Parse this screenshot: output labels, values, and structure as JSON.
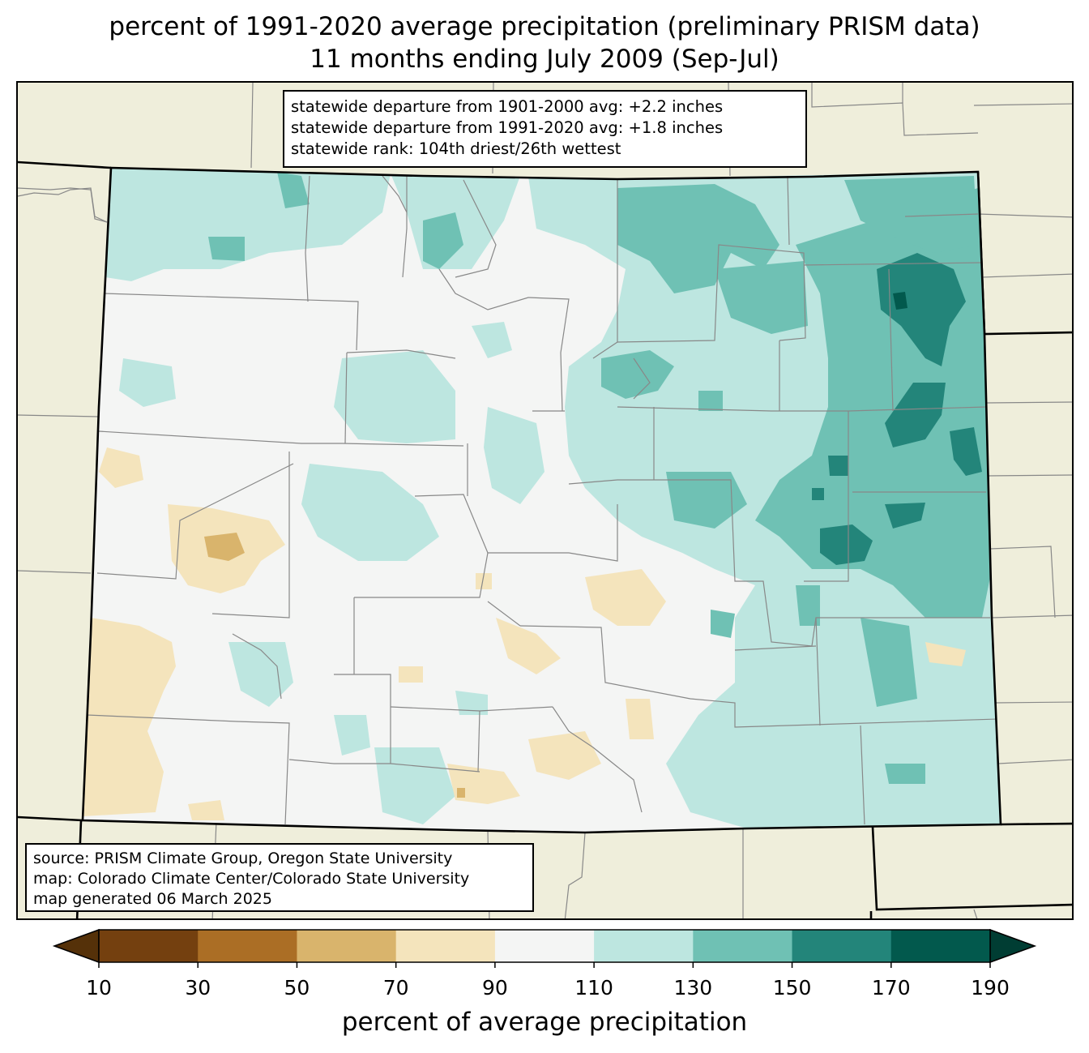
{
  "title_line1": "percent of 1991-2020 average precipitation (preliminary PRISM data)",
  "title_line2": "11 months ending July 2009 (Sep-Jul)",
  "stats": {
    "line1": "statewide departure from 1901-2000 avg: +2.2 inches",
    "line2": "statewide departure from 1991-2020 avg: +1.8 inches",
    "line3": "statewide rank: 104th driest/26th wettest"
  },
  "source": {
    "line1": "source: PRISM Climate Group, Oregon State University",
    "line2": "map: Colorado Climate Center/Colorado State University",
    "line3": "map generated 06 March 2025"
  },
  "colorbar": {
    "label": "percent of average precipitation",
    "ticks": [
      "10",
      "30",
      "50",
      "70",
      "90",
      "110",
      "130",
      "150",
      "170",
      "190"
    ],
    "colors": [
      "#74400f",
      "#ab6e25",
      "#d9b46c",
      "#f4e4bc",
      "#f4f5f4",
      "#bde6e0",
      "#6fc1b4",
      "#23857a",
      "#02594d"
    ],
    "under_color": "#553109",
    "over_color": "#003d33"
  },
  "colors": {
    "background_land": "#efeedb",
    "near_normal": "#f4f5f4"
  }
}
